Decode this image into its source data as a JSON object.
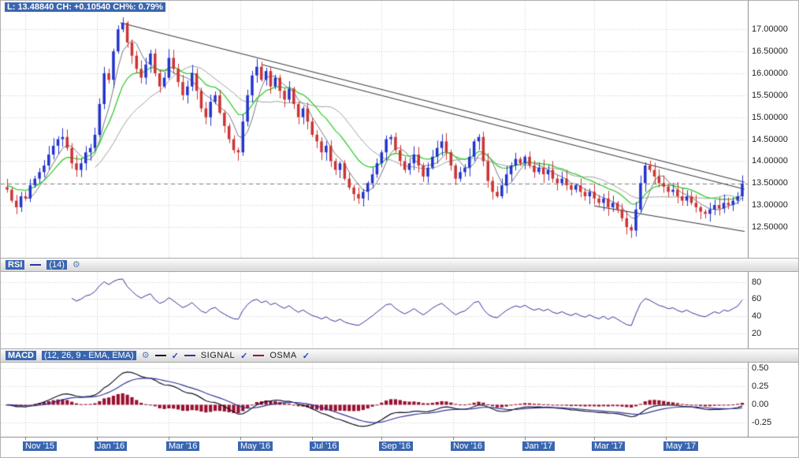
{
  "overlay": {
    "quote_line": "L: 13.48840 CH: +0.10540 CH%: 0.79%"
  },
  "icons": {
    "check": "✓",
    "gear": "⚙"
  },
  "panels": {
    "rsi": {
      "name": "RSI",
      "params": "(14)"
    },
    "macd": {
      "name": "MACD",
      "params": "(12, 26, 9 - EMA, EMA)",
      "series": [
        {
          "label": "SIGNAL"
        },
        {
          "label": "OSMA"
        }
      ]
    }
  },
  "colors": {
    "candle_up": "#2233cc",
    "candle_down": "#cc3333",
    "ema_green": "#33cc33",
    "sma_fast": "#777777",
    "sma_slow": "#a0a0a0",
    "rsi_line": "#333399",
    "macd_line": "#14142a",
    "signal_line": "#333399",
    "osma_bar": "#99112f",
    "trendline": "#333333",
    "grid": "#cccccc",
    "axis_text": "#222222",
    "highlight_bg": "#3a66b0",
    "highlight_fg": "#ffffff",
    "last_price_line": "#888888"
  },
  "chart_data": [
    {
      "type": "candlestick",
      "title": "Price with EMA/SMA overlays and descending trendlines",
      "x_axis": {
        "labels": [
          "Nov '15",
          "Jan '16",
          "Mar '16",
          "May '16",
          "Jul '16",
          "Sep '16",
          "Nov '16",
          "Jan '17",
          "Mar '17",
          "May '17"
        ],
        "tick_index": [
          4,
          19.5,
          35,
          50.5,
          66,
          81,
          96.5,
          112,
          127,
          142.5
        ]
      },
      "ylim": [
        11.8,
        17.65
      ],
      "yticks": [
        17,
        16.5,
        16,
        15.5,
        15,
        14.5,
        14,
        13.5,
        13,
        12.5
      ],
      "ytick_labels": [
        "17.00000",
        "16.50000",
        "16.00000",
        "15.50000",
        "15.00000",
        "14.50000",
        "14.00000",
        "13.50000",
        "13.00000",
        "12.50000"
      ],
      "closes": [
        13.35,
        13.1,
        12.95,
        13.2,
        13.15,
        13.45,
        13.6,
        13.75,
        13.9,
        14.15,
        14.35,
        14.5,
        14.55,
        14.3,
        13.95,
        13.8,
        13.95,
        14.2,
        14.3,
        14.6,
        15.3,
        16.0,
        15.85,
        16.5,
        17.0,
        17.15,
        16.7,
        16.4,
        16.1,
        15.9,
        16.2,
        16.45,
        16.0,
        15.7,
        15.9,
        16.35,
        16.1,
        15.8,
        15.5,
        15.7,
        16.0,
        15.6,
        15.2,
        15.0,
        15.35,
        15.5,
        15.1,
        14.8,
        14.5,
        14.25,
        14.2,
        14.9,
        15.5,
        15.95,
        16.15,
        15.85,
        16.05,
        15.7,
        15.9,
        15.6,
        15.4,
        15.65,
        15.3,
        15.0,
        15.2,
        14.9,
        14.6,
        14.45,
        14.2,
        14.35,
        14.0,
        13.8,
        13.95,
        13.6,
        13.4,
        13.25,
        13.15,
        13.3,
        13.5,
        13.7,
        13.95,
        14.2,
        14.5,
        14.55,
        14.25,
        14.0,
        13.8,
        13.95,
        14.15,
        13.9,
        13.65,
        13.85,
        14.1,
        14.3,
        14.45,
        14.2,
        13.9,
        13.6,
        13.75,
        13.85,
        14.1,
        14.45,
        14.55,
        14.0,
        13.55,
        13.3,
        13.2,
        13.45,
        13.7,
        13.9,
        14.05,
        13.95,
        14.1,
        13.9,
        13.75,
        13.85,
        13.7,
        13.8,
        13.6,
        13.5,
        13.6,
        13.45,
        13.35,
        13.45,
        13.3,
        13.2,
        13.3,
        13.15,
        13.05,
        13.15,
        12.95,
        13.05,
        12.9,
        12.7,
        12.5,
        12.42,
        12.9,
        13.5,
        13.9,
        13.8,
        13.65,
        13.5,
        13.42,
        13.3,
        13.35,
        13.2,
        13.1,
        13.2,
        13.05,
        12.95,
        12.85,
        12.8,
        12.9,
        13.0,
        12.92,
        13.05,
        13.0,
        13.1,
        13.2,
        13.49
      ],
      "last_price": 13.4884,
      "change": 0.1054,
      "change_pct": 0.79,
      "overlays": {
        "ema_green_period": 12,
        "sma_fast_period": 5,
        "sma_slow_period": 20
      },
      "trendlines": [
        [
          [
            24.5,
            17.15
          ],
          [
            159.5,
            13.52
          ]
        ],
        [
          [
            55,
            16.2
          ],
          [
            159.5,
            13.36
          ]
        ],
        [
          [
            127,
            12.98
          ],
          [
            159.5,
            12.4
          ]
        ]
      ]
    },
    {
      "type": "line",
      "indicator": "RSI",
      "period": 14,
      "derived_from": "closes",
      "ylim": [
        2,
        92
      ],
      "yticks": [
        80,
        60,
        40,
        20
      ],
      "ytick_labels": [
        "80",
        "60",
        "40",
        "20"
      ]
    },
    {
      "type": "macd",
      "indicator": "MACD",
      "fast": 12,
      "slow": 26,
      "signal": 9,
      "derived_from": "closes",
      "ylim": [
        -0.44,
        0.58
      ],
      "yticks": [
        0.5,
        0.25,
        0,
        -0.25
      ],
      "ytick_labels": [
        "0.50",
        "0.25",
        "0.00",
        "-0.25"
      ],
      "normalize_peak": 0.45
    }
  ]
}
